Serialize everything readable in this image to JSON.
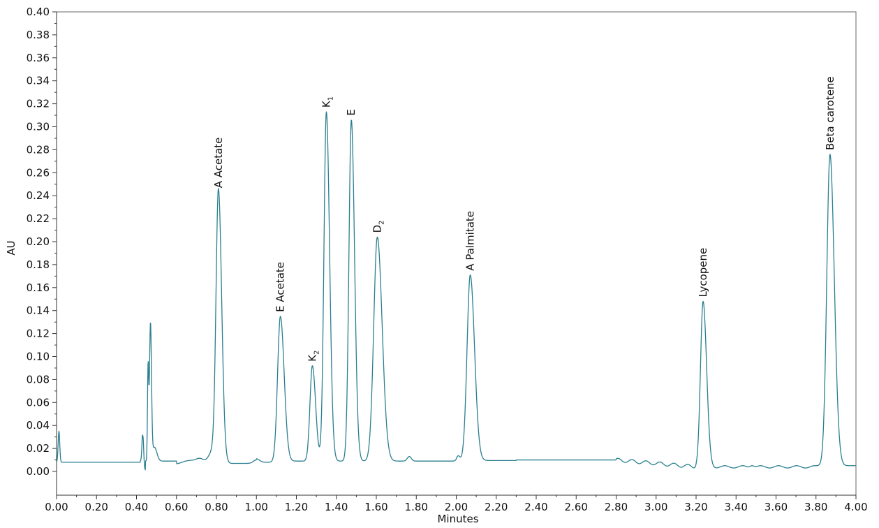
{
  "chart_data": {
    "type": "line",
    "xlabel": "Minutes",
    "ylabel": "AU",
    "xlim": [
      0.0,
      4.0
    ],
    "ylim": [
      0.0,
      0.4
    ],
    "x_ticks": [
      "0.00",
      "0.20",
      "0.40",
      "0.60",
      "0.80",
      "1.00",
      "1.20",
      "1.40",
      "1.60",
      "1.80",
      "2.00",
      "2.20",
      "2.40",
      "2.60",
      "2.80",
      "3.00",
      "3.20",
      "3.40",
      "3.60",
      "3.80",
      "4.00"
    ],
    "y_ticks": [
      "0.00",
      "0.02",
      "0.04",
      "0.06",
      "0.08",
      "0.10",
      "0.12",
      "0.14",
      "0.16",
      "0.18",
      "0.20",
      "0.22",
      "0.24",
      "0.26",
      "0.28",
      "0.30",
      "0.32",
      "0.34",
      "0.36",
      "0.38",
      "0.40"
    ],
    "grid": false,
    "line_color": "#2a7f8f",
    "peaks": [
      {
        "label": "A Acetate",
        "sub": "",
        "x": 0.81,
        "y": 0.243
      },
      {
        "label": "E Acetate",
        "sub": "",
        "x": 1.12,
        "y": 0.135
      },
      {
        "label": "K",
        "sub": "2",
        "x": 1.28,
        "y": 0.092
      },
      {
        "label": "K",
        "sub": "1",
        "x": 1.35,
        "y": 0.313
      },
      {
        "label": "E",
        "sub": "",
        "x": 1.475,
        "y": 0.306
      },
      {
        "label": "D",
        "sub": "2",
        "x": 1.605,
        "y": 0.204
      },
      {
        "label": "A Palmitate",
        "sub": "",
        "x": 2.07,
        "y": 0.171
      },
      {
        "label": "Lycopene",
        "sub": "",
        "x": 3.235,
        "y": 0.148
      },
      {
        "label": "Beta carotene",
        "sub": "",
        "x": 3.87,
        "y": 0.276
      }
    ]
  }
}
